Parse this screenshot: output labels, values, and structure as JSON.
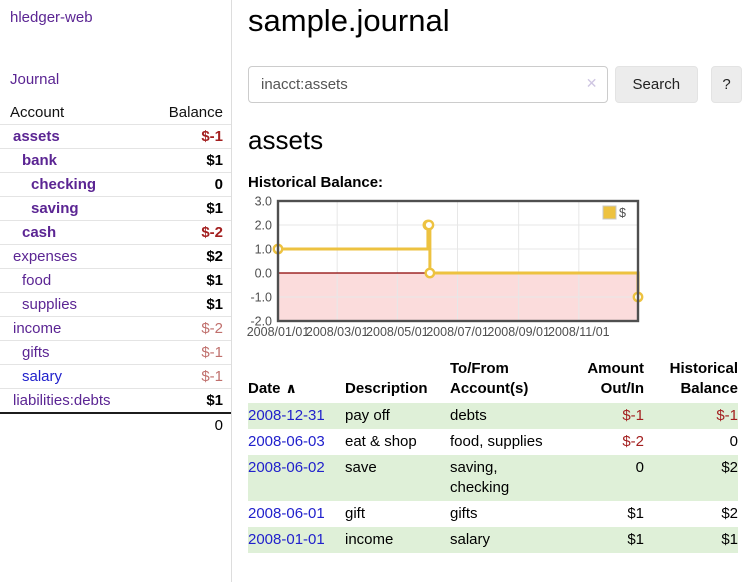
{
  "app": {
    "brand": "hledger-web",
    "nav": {
      "journal": "Journal"
    }
  },
  "palette": {
    "link_purple": "#5b2593",
    "link_blue": "#2222cc",
    "negative_strong": "#a31f1f",
    "negative_soft": "#c0706d",
    "row_stripe_green": "#dff0d8",
    "series_gold": "#edc240"
  },
  "sidebar": {
    "header": {
      "account": "Account",
      "balance": "Balance"
    },
    "accounts": [
      {
        "name": "assets",
        "indent": 1,
        "emph": true,
        "balance": "$-1",
        "neg": "strong"
      },
      {
        "name": "bank",
        "indent": 2,
        "emph": true,
        "balance": "$1",
        "neg": "none"
      },
      {
        "name": "checking",
        "indent": 3,
        "emph": true,
        "balance": "0",
        "neg": "none"
      },
      {
        "name": "saving",
        "indent": 3,
        "emph": true,
        "balance": "$1",
        "neg": "none"
      },
      {
        "name": "cash",
        "indent": 2,
        "emph": true,
        "balance": "$-2",
        "neg": "strong"
      },
      {
        "name": "expenses",
        "indent": 1,
        "emph": false,
        "balance": "$2",
        "neg": "none"
      },
      {
        "name": "food",
        "indent": 2,
        "emph": false,
        "balance": "$1",
        "neg": "none"
      },
      {
        "name": "supplies",
        "indent": 2,
        "emph": false,
        "balance": "$1",
        "neg": "none"
      },
      {
        "name": "income",
        "indent": 1,
        "emph": false,
        "balance": "$-2",
        "neg": "soft"
      },
      {
        "name": "gifts",
        "indent": 2,
        "emph": false,
        "balance": "$-1",
        "neg": "soft"
      },
      {
        "name": "salary",
        "indent": 2,
        "emph": false,
        "highlight": "blue",
        "balance": "$-1",
        "neg": "soft"
      },
      {
        "name": "liabilities:debts",
        "indent": 1,
        "emph": false,
        "balance": "$1",
        "neg": "none"
      }
    ],
    "total": "0"
  },
  "main": {
    "title": "sample.journal",
    "search": {
      "value": "inacct:assets",
      "clear_icon": "✕",
      "search_button": "Search",
      "help_button": "?"
    },
    "account_heading": "assets",
    "chart_title": "Historical Balance:"
  },
  "chart_data": {
    "type": "line",
    "title": "Historical Balance:",
    "style": "steps",
    "ylim": [
      -2.0,
      3.0
    ],
    "yticks": [
      {
        "v": 3.0,
        "label": "3.0"
      },
      {
        "v": 2.0,
        "label": "2.0"
      },
      {
        "v": 1.0,
        "label": "1.0"
      },
      {
        "v": 0.0,
        "label": "0.0"
      },
      {
        "v": -1.0,
        "label": "-1.0"
      },
      {
        "v": -2.0,
        "label": "-2.0"
      }
    ],
    "xlim_days": [
      0,
      365
    ],
    "xticks": [
      {
        "day": 0,
        "label": "2008/01/01"
      },
      {
        "day": 60,
        "label": "2008/03/01"
      },
      {
        "day": 121,
        "label": "2008/05/01"
      },
      {
        "day": 182,
        "label": "2008/07/01"
      },
      {
        "day": 244,
        "label": "2008/09/01"
      },
      {
        "day": 305,
        "label": "2008/11/01"
      }
    ],
    "series": [
      {
        "name": "$",
        "color": "#edc240",
        "points": [
          {
            "date": "2008/01/01",
            "day": 0,
            "value": 1.0
          },
          {
            "date": "2008/06/01",
            "day": 152,
            "value": 2.0
          },
          {
            "date": "2008/06/02",
            "day": 153,
            "value": 2.0
          },
          {
            "date": "2008/06/03",
            "day": 154,
            "value": 0.0
          },
          {
            "date": "2008/12/31",
            "day": 365,
            "value": -1.0
          }
        ]
      }
    ],
    "legend": {
      "label": "$",
      "position": "top-right"
    },
    "negative_region_fill": "#fbdcdc",
    "zero_line_color": "#8b0000",
    "grid": true
  },
  "register": {
    "sort_caret": "∧",
    "columns": [
      {
        "label": "Date"
      },
      {
        "label": "Description"
      },
      {
        "label": "To/From Account(s)"
      },
      {
        "label": "Amount Out/In"
      },
      {
        "label": "Historical Balance"
      }
    ],
    "rows": [
      {
        "date": "2008-12-31",
        "description": "pay off",
        "accounts": "debts",
        "amount": "$-1",
        "amount_neg": true,
        "balance": "$-1",
        "balance_neg": true
      },
      {
        "date": "2008-06-03",
        "description": "eat & shop",
        "accounts": "food, supplies",
        "amount": "$-2",
        "amount_neg": true,
        "balance": "0",
        "balance_neg": false
      },
      {
        "date": "2008-06-02",
        "description": "save",
        "accounts": "saving, checking",
        "amount": "0",
        "amount_neg": false,
        "balance": "$2",
        "balance_neg": false
      },
      {
        "date": "2008-06-01",
        "description": "gift",
        "accounts": "gifts",
        "amount": "$1",
        "amount_neg": false,
        "balance": "$2",
        "balance_neg": false
      },
      {
        "date": "2008-01-01",
        "description": "income",
        "accounts": "salary",
        "amount": "$1",
        "amount_neg": false,
        "balance": "$1",
        "balance_neg": false
      }
    ]
  }
}
